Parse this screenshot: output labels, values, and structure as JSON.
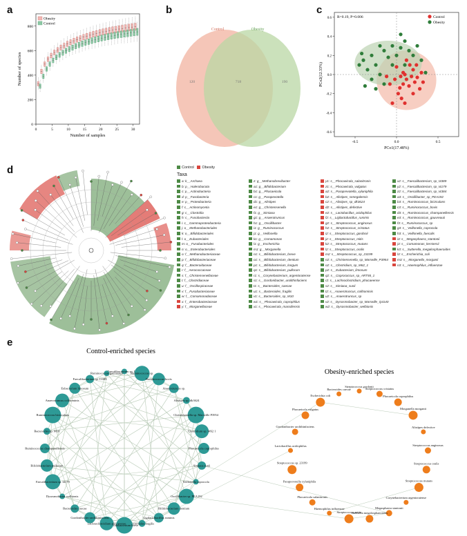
{
  "panel_letters": [
    "a",
    "b",
    "c",
    "d",
    "e"
  ],
  "colors": {
    "control": "#e8a39a",
    "control_box": "#8fc9a6",
    "obesity_box": "#f2b7b3",
    "obesity": "#2e8b57",
    "venn_control": "#f1b3a0",
    "venn_obesity": "#b9d7a4",
    "pca_control": "#e0302e",
    "pca_obesity": "#2f7d3a",
    "lefse_control": "#4d8a45",
    "lefse_obesity": "#d9453d",
    "net_control": "#2e9a96",
    "net_obesity": "#ee7d1c"
  },
  "chart_data": [
    {
      "type": "box",
      "panel": "a",
      "xlabel": "Number of samples",
      "ylabel": "Number of species",
      "xticks": [
        0,
        5,
        10,
        15,
        20,
        25,
        30
      ],
      "yticks": [
        0,
        200,
        400,
        600,
        800
      ],
      "xlim": [
        0,
        32
      ],
      "ylim": [
        0,
        900
      ],
      "legend": [
        "Obesity",
        "Control"
      ],
      "series": [
        {
          "name": "Obesity",
          "x": [
            1,
            2,
            3,
            4,
            5,
            6,
            7,
            8,
            9,
            10,
            11,
            12,
            13,
            14,
            15,
            16,
            17,
            18,
            19,
            20,
            21,
            22,
            23,
            24,
            25,
            26,
            27,
            28,
            29,
            30,
            31
          ],
          "values": [
            330,
            430,
            490,
            530,
            560,
            585,
            605,
            625,
            640,
            655,
            668,
            680,
            690,
            700,
            710,
            718,
            726,
            734,
            740,
            747,
            753,
            758,
            763,
            768,
            772,
            776,
            780,
            784,
            788,
            792,
            795
          ]
        },
        {
          "name": "Control",
          "x": [
            1,
            2,
            3,
            4,
            5,
            6,
            7,
            8,
            9,
            10,
            11,
            12,
            13,
            14,
            15,
            16,
            17,
            18,
            19,
            20,
            21,
            22,
            23,
            24,
            25,
            26,
            27,
            28,
            29,
            30,
            31
          ],
          "values": [
            310,
            390,
            450,
            490,
            520,
            545,
            565,
            582,
            598,
            612,
            624,
            636,
            646,
            656,
            665,
            673,
            681,
            688,
            695,
            702,
            708,
            714,
            719,
            724,
            729,
            733,
            737,
            741,
            745,
            749,
            753
          ]
        }
      ]
    },
    {
      "type": "venn",
      "panel": "b",
      "sets": [
        "Control",
        "Obesity"
      ],
      "values": {
        "control_only": "120",
        "shared": "718",
        "obesity_only": "190"
      }
    },
    {
      "type": "scatter",
      "panel": "c",
      "annotation": "R=0.19,  P=0.006",
      "xlabel": "PCo1(17.48%)",
      "ylabel": "PCo2(12.33%)",
      "xticks": [
        -0.5,
        0.0,
        0.5
      ],
      "yticks": [
        -0.6,
        -0.4,
        -0.2,
        0.0,
        0.2,
        0.4,
        0.6
      ],
      "xlim": [
        -0.75,
        0.75
      ],
      "ylim": [
        -0.65,
        0.65
      ],
      "legend": [
        "Control",
        "Obesity"
      ],
      "series": [
        {
          "name": "Control",
          "points": [
            [
              0.05,
              -0.02
            ],
            [
              0.1,
              0.0
            ],
            [
              0.12,
              -0.05
            ],
            [
              0.18,
              -0.02
            ],
            [
              0.2,
              0.05
            ],
            [
              0.08,
              -0.1
            ],
            [
              0.15,
              -0.12
            ],
            [
              0.22,
              -0.08
            ],
            [
              0.25,
              -0.03
            ],
            [
              0.3,
              0.02
            ],
            [
              0.02,
              -0.2
            ],
            [
              0.06,
              -0.25
            ],
            [
              0.1,
              -0.3
            ],
            [
              -0.05,
              -0.3
            ],
            [
              0.28,
              -0.15
            ],
            [
              0.16,
              0.1
            ],
            [
              0.0,
              0.08
            ],
            [
              -0.02,
              -0.05
            ],
            [
              0.32,
              -0.08
            ],
            [
              0.12,
              0.15
            ],
            [
              0.04,
              -0.14
            ],
            [
              0.2,
              -0.2
            ],
            [
              -0.08,
              -0.1
            ],
            [
              0.24,
              0.1
            ],
            [
              0.08,
              0.02
            ],
            [
              -0.12,
              -0.02
            ]
          ]
        },
        {
          "name": "Obesity",
          "points": [
            [
              -0.2,
              0.3
            ],
            [
              -0.3,
              0.2
            ],
            [
              -0.4,
              0.15
            ],
            [
              -0.25,
              0.1
            ],
            [
              -0.35,
              0.05
            ],
            [
              -0.15,
              0.25
            ],
            [
              -0.05,
              0.3
            ],
            [
              0.05,
              0.28
            ],
            [
              0.1,
              0.35
            ],
            [
              0.15,
              0.25
            ],
            [
              -0.45,
              0.1
            ],
            [
              -0.2,
              0.0
            ],
            [
              -0.3,
              -0.05
            ],
            [
              -0.1,
              0.18
            ],
            [
              0.0,
              0.2
            ],
            [
              0.2,
              0.2
            ],
            [
              0.25,
              0.3
            ],
            [
              -0.38,
              -0.12
            ],
            [
              -0.25,
              -0.15
            ],
            [
              -0.15,
              -0.1
            ],
            [
              0.3,
              0.15
            ],
            [
              0.05,
              0.42
            ],
            [
              -0.05,
              0.1
            ],
            [
              -0.42,
              0.22
            ],
            [
              0.35,
              0.02
            ],
            [
              0.1,
              0.1
            ]
          ]
        }
      ]
    },
    {
      "type": "cladogram",
      "panel": "d",
      "legend": [
        "Control",
        "Obesity"
      ],
      "taxa_title": "Taxa",
      "taxa": [
        [
          "Control",
          "a: k__Archaea"
        ],
        [
          "Control",
          "b: p__Halerobacota"
        ],
        [
          "Control",
          "c: p__Actinobacteria"
        ],
        [
          "Control",
          "d: p__Fusobacteria"
        ],
        [
          "Control",
          "e: p__Proteobacteria"
        ],
        [
          "Control",
          "f: c__Actinomycetia"
        ],
        [
          "Control",
          "g: c__Clostridia"
        ],
        [
          "Control",
          "h: c__Fusobacteriia"
        ],
        [
          "Control",
          "i: c__Gammaproteobacteria"
        ],
        [
          "Control",
          "j: o__Methanobacteriales"
        ],
        [
          "Control",
          "k: o__Bifidobacteriales"
        ],
        [
          "Control",
          "l: o__Eubacteriales"
        ],
        [
          "Control",
          "m: o__Fusobacteriales"
        ],
        [
          "Control",
          "n: o__Enterobacteriales"
        ],
        [
          "Control",
          "o: f__Methanobacteriaceae"
        ],
        [
          "Control",
          "p: f__Bifidobacteriaceae"
        ],
        [
          "Control",
          "q: f__Bacteroidaceae"
        ],
        [
          "Control",
          "r: f__Aerococcaceae"
        ],
        [
          "Control",
          "s: f__Christensenellaceae"
        ],
        [
          "Control",
          "t: f__Clostridiaceae"
        ],
        [
          "Control",
          "u: f__Oscillospiraceae"
        ],
        [
          "Control",
          "v: f__Fusobacteriaceae"
        ],
        [
          "Control",
          "w: f__Comamonadaceae"
        ],
        [
          "Obesity",
          "x: f__Enterobacteriaceae"
        ],
        [
          "Obesity",
          "y: f__Morganellaceae"
        ],
        [
          "Control",
          "z: g__Methanobrevibacter"
        ],
        [
          "Control",
          "a1: g__Bifidobacterium"
        ],
        [
          "Control",
          "b1: g__Phocaeicola"
        ],
        [
          "Control",
          "c1: g__Parapevotella"
        ],
        [
          "Control",
          "d1: g__Alistipes"
        ],
        [
          "Control",
          "e1: g__Christensenella"
        ],
        [
          "Control",
          "f1: g__Simiaoa"
        ],
        [
          "Control",
          "g1: g__Anaerotruncus"
        ],
        [
          "Control",
          "h1: g__Oscillibacter"
        ],
        [
          "Control",
          "i1: g__Ruminococcus"
        ],
        [
          "Control",
          "j1: g__Veillonella"
        ],
        [
          "Control",
          "k1: g__Comamonas"
        ],
        [
          "Control",
          "l1: g__Escherichia"
        ],
        [
          "Control",
          "m1: g__Morganella"
        ],
        [
          "Control",
          "n1: s__Bifidobacterium_breve"
        ],
        [
          "Control",
          "o1: s__Bifidobacterium_dentium"
        ],
        [
          "Control",
          "p1: s__Bifidobacterium_longum"
        ],
        [
          "Control",
          "q1: s__Bifidobacterium_pullorum"
        ],
        [
          "Control",
          "r1: s__Corynebacterium_argentoratense"
        ],
        [
          "Control",
          "s1: s__Gordonibacter_urolithinfaciens"
        ],
        [
          "Control",
          "t1: s__Bacteroides_caecae"
        ],
        [
          "Control",
          "u1: s__Bacteroides_fragilis"
        ],
        [
          "Control",
          "v1: s__Bacteroides_sp_M10"
        ],
        [
          "Control",
          "w1: s__Phocaeicola_coprophilus"
        ],
        [
          "Control",
          "x1: s__Phocaeicola_massiliensis"
        ],
        [
          "Obesity",
          "y1: s__Phocaeicola_salanitronis"
        ],
        [
          "Obesity",
          "z1: s__Phocaeicola_vulgatus"
        ],
        [
          "Obesity",
          "a2: s__Paraprevotella_xylaniphila"
        ],
        [
          "Obesity",
          "b2: s__Alistipes_senegalensis"
        ],
        [
          "Obesity",
          "c2: s__Alistipes_sp_dk3624"
        ],
        [
          "Obesity",
          "d2: s__Alistipes_defective"
        ],
        [
          "Obesity",
          "e2: s__Lactobacillus_acidophilus"
        ],
        [
          "Obesity",
          "f2: s__Ligilactobacillus_ruminis"
        ],
        [
          "Obesity",
          "g2: s__Streptococcus_anginosus"
        ],
        [
          "Obesity",
          "h2: s__Streptococcus_cristatus"
        ],
        [
          "Obesity",
          "i2: s__Streptococcus_gordonii"
        ],
        [
          "Obesity",
          "j2: s__Streptococcus_mitis"
        ],
        [
          "Obesity",
          "k2: s__Streptococcus_mutans"
        ],
        [
          "Obesity",
          "l2: s__Streptococcus_oralis"
        ],
        [
          "Obesity",
          "m2: s__Streptococcus_sp_23199"
        ],
        [
          "Control",
          "n2: s__Christensenella_sp_Marseille_P3954"
        ],
        [
          "Control",
          "o2: s__Clostridium_sp_M62_1"
        ],
        [
          "Control",
          "p2: s__Eubacterium_limosum"
        ],
        [
          "Control",
          "q2: s__Coprococcus_sp_ART55_1"
        ],
        [
          "Control",
          "r2: s__Lachnoclostridium_phocaeense"
        ],
        [
          "Control",
          "s2: s__Simiaoa_sunii"
        ],
        [
          "Control",
          "t2: s__Anaerotruncus_colihominis"
        ],
        [
          "Control",
          "u2: s__Anaerotruncus_sp"
        ],
        [
          "Control",
          "v2: s__Dysosmobacter_sp_Marseille_Q4140"
        ],
        [
          "Control",
          "w2: s__Dysosmobacter_welbionis"
        ],
        [
          "Control",
          "x2: s__Faecalibacterium_sp_I3389"
        ],
        [
          "Control",
          "y2: s__Faecalibacterium_sp_I4179"
        ],
        [
          "Control",
          "z2: s__Faecalibacterium_sp_I4384"
        ],
        [
          "Control",
          "a3: s__Oscillibacter_sp_PEA192"
        ],
        [
          "Control",
          "b3: s__Ruminococcus_bicirculans"
        ],
        [
          "Control",
          "c3: s__Ruminococcus_bovis"
        ],
        [
          "Control",
          "d3: s__Ruminococcus_champanellensis"
        ],
        [
          "Control",
          "e3: s__Ruminococcus_gauvreauii"
        ],
        [
          "Control",
          "f3: s__Ruminococcus_sp"
        ],
        [
          "Control",
          "g3: s__Veillonella_coprocola"
        ],
        [
          "Control",
          "h3: s__Veillonella_faecalis"
        ],
        [
          "Obesity",
          "i3: s__Megasphaera_stantonii"
        ],
        [
          "Obesity",
          "j3: s__Comamonas_kerstersii"
        ],
        [
          "Control",
          "k3: s__Sutterella_megalosphaeroides"
        ],
        [
          "Obesity",
          "l3: s__Escherichia_coli"
        ],
        [
          "Obesity",
          "m3: s__Morganella_morganii"
        ],
        [
          "Obesity",
          "n3: s__Haemophilus_influenzae"
        ]
      ]
    },
    {
      "type": "network",
      "panel": "e",
      "groups": [
        {
          "name": "Control-enriched species",
          "nodes": [
            "Faecalibacterium sp. I4384",
            "Ruminococcus sp.",
            "Ruminococcus bovis",
            "Anaerotruncus sp.",
            "Alistipes sp. dk3624",
            "Christensenella sp. Marseille P3954",
            "Clostridium sp. M62 1",
            "Phocaeicola coprophilus",
            "Simiaoa sunii",
            "Veillonella coprocola",
            "Oscillibacter sp. PEA192",
            "Bifidobacterium dentium",
            "Ligilactobacillus ruminis",
            "Bacteroides fragilis",
            "Bifidobacterium breve",
            "Lachnoclostridium phocaeense",
            "Gordonibacter urolithinfaciens",
            "Bacteroides caecae",
            "Dysosmobacter welbionis",
            "Faecalibacterium sp. I4179",
            "Bifidobacterium pullorum",
            "Ruminococcus champanellensis",
            "Bacteroides sp. M10",
            "Ruminococcus bicirculans",
            "Anaerotruncus colihominis",
            "Eubacterium limosum",
            "Faecalibacterium sp. I3389",
            "Ruminococcus gauvreauii"
          ]
        },
        {
          "name": "Obesity-enriched species",
          "nodes": [
            "Streptococcus gordonii",
            "Streptococcus cristatus",
            "Phocaeicola coprophilus",
            "Morganella morganii",
            "Alistipes defective",
            "Streptococcus anginosus",
            "Streptococcus oralis",
            "Streptococcus mutans",
            "Corynebacterium argentoratense",
            "Megasphaera stantonii",
            "Sutterella megalosphaeroides",
            "Streptococcus mitis",
            "Haemophilus influenzae",
            "Phocaeicola salanitronis",
            "Paraprevotella xylaniphila",
            "Streptococcus sp. 23199",
            "Lactobacillus acidophilus",
            "Gordonibacter urolithinfaciens",
            "Phocaeicola vulgatus",
            "Escherichia coli",
            "Bacteroides caecae"
          ]
        }
      ]
    }
  ]
}
